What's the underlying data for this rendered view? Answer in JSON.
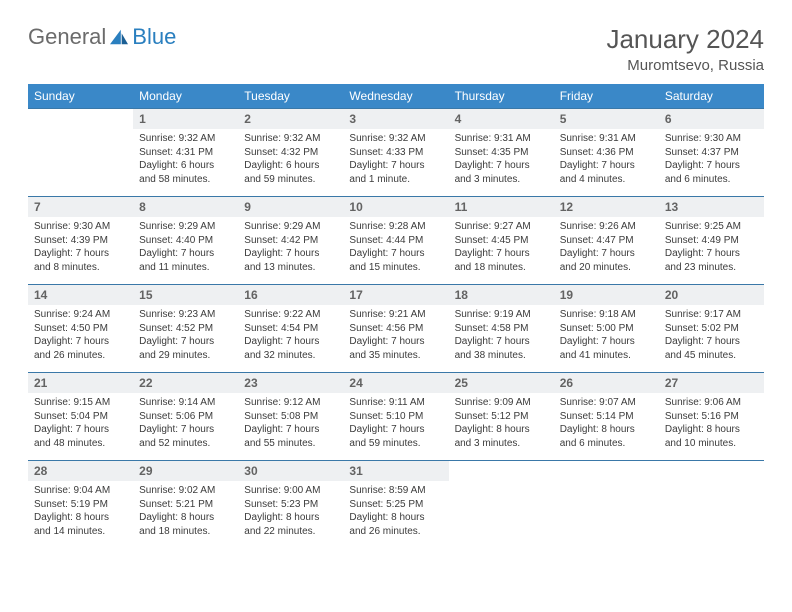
{
  "brand": {
    "part1": "General",
    "part2": "Blue"
  },
  "title": "January 2024",
  "location": "Muromtsevo, Russia",
  "colors": {
    "header_bg": "#3a88c8",
    "header_text": "#ffffff",
    "daynum_bg": "#eef0f2",
    "daynum_text": "#636363",
    "body_text": "#3b3b3b",
    "rule": "#3a78a8",
    "brand_gray": "#6b6b6b",
    "brand_blue": "#2a7fbf"
  },
  "day_headers": [
    "Sunday",
    "Monday",
    "Tuesday",
    "Wednesday",
    "Thursday",
    "Friday",
    "Saturday"
  ],
  "weeks": [
    [
      {
        "n": "",
        "lines": []
      },
      {
        "n": "1",
        "lines": [
          "Sunrise: 9:32 AM",
          "Sunset: 4:31 PM",
          "Daylight: 6 hours",
          "and 58 minutes."
        ]
      },
      {
        "n": "2",
        "lines": [
          "Sunrise: 9:32 AM",
          "Sunset: 4:32 PM",
          "Daylight: 6 hours",
          "and 59 minutes."
        ]
      },
      {
        "n": "3",
        "lines": [
          "Sunrise: 9:32 AM",
          "Sunset: 4:33 PM",
          "Daylight: 7 hours",
          "and 1 minute."
        ]
      },
      {
        "n": "4",
        "lines": [
          "Sunrise: 9:31 AM",
          "Sunset: 4:35 PM",
          "Daylight: 7 hours",
          "and 3 minutes."
        ]
      },
      {
        "n": "5",
        "lines": [
          "Sunrise: 9:31 AM",
          "Sunset: 4:36 PM",
          "Daylight: 7 hours",
          "and 4 minutes."
        ]
      },
      {
        "n": "6",
        "lines": [
          "Sunrise: 9:30 AM",
          "Sunset: 4:37 PM",
          "Daylight: 7 hours",
          "and 6 minutes."
        ]
      }
    ],
    [
      {
        "n": "7",
        "lines": [
          "Sunrise: 9:30 AM",
          "Sunset: 4:39 PM",
          "Daylight: 7 hours",
          "and 8 minutes."
        ]
      },
      {
        "n": "8",
        "lines": [
          "Sunrise: 9:29 AM",
          "Sunset: 4:40 PM",
          "Daylight: 7 hours",
          "and 11 minutes."
        ]
      },
      {
        "n": "9",
        "lines": [
          "Sunrise: 9:29 AM",
          "Sunset: 4:42 PM",
          "Daylight: 7 hours",
          "and 13 minutes."
        ]
      },
      {
        "n": "10",
        "lines": [
          "Sunrise: 9:28 AM",
          "Sunset: 4:44 PM",
          "Daylight: 7 hours",
          "and 15 minutes."
        ]
      },
      {
        "n": "11",
        "lines": [
          "Sunrise: 9:27 AM",
          "Sunset: 4:45 PM",
          "Daylight: 7 hours",
          "and 18 minutes."
        ]
      },
      {
        "n": "12",
        "lines": [
          "Sunrise: 9:26 AM",
          "Sunset: 4:47 PM",
          "Daylight: 7 hours",
          "and 20 minutes."
        ]
      },
      {
        "n": "13",
        "lines": [
          "Sunrise: 9:25 AM",
          "Sunset: 4:49 PM",
          "Daylight: 7 hours",
          "and 23 minutes."
        ]
      }
    ],
    [
      {
        "n": "14",
        "lines": [
          "Sunrise: 9:24 AM",
          "Sunset: 4:50 PM",
          "Daylight: 7 hours",
          "and 26 minutes."
        ]
      },
      {
        "n": "15",
        "lines": [
          "Sunrise: 9:23 AM",
          "Sunset: 4:52 PM",
          "Daylight: 7 hours",
          "and 29 minutes."
        ]
      },
      {
        "n": "16",
        "lines": [
          "Sunrise: 9:22 AM",
          "Sunset: 4:54 PM",
          "Daylight: 7 hours",
          "and 32 minutes."
        ]
      },
      {
        "n": "17",
        "lines": [
          "Sunrise: 9:21 AM",
          "Sunset: 4:56 PM",
          "Daylight: 7 hours",
          "and 35 minutes."
        ]
      },
      {
        "n": "18",
        "lines": [
          "Sunrise: 9:19 AM",
          "Sunset: 4:58 PM",
          "Daylight: 7 hours",
          "and 38 minutes."
        ]
      },
      {
        "n": "19",
        "lines": [
          "Sunrise: 9:18 AM",
          "Sunset: 5:00 PM",
          "Daylight: 7 hours",
          "and 41 minutes."
        ]
      },
      {
        "n": "20",
        "lines": [
          "Sunrise: 9:17 AM",
          "Sunset: 5:02 PM",
          "Daylight: 7 hours",
          "and 45 minutes."
        ]
      }
    ],
    [
      {
        "n": "21",
        "lines": [
          "Sunrise: 9:15 AM",
          "Sunset: 5:04 PM",
          "Daylight: 7 hours",
          "and 48 minutes."
        ]
      },
      {
        "n": "22",
        "lines": [
          "Sunrise: 9:14 AM",
          "Sunset: 5:06 PM",
          "Daylight: 7 hours",
          "and 52 minutes."
        ]
      },
      {
        "n": "23",
        "lines": [
          "Sunrise: 9:12 AM",
          "Sunset: 5:08 PM",
          "Daylight: 7 hours",
          "and 55 minutes."
        ]
      },
      {
        "n": "24",
        "lines": [
          "Sunrise: 9:11 AM",
          "Sunset: 5:10 PM",
          "Daylight: 7 hours",
          "and 59 minutes."
        ]
      },
      {
        "n": "25",
        "lines": [
          "Sunrise: 9:09 AM",
          "Sunset: 5:12 PM",
          "Daylight: 8 hours",
          "and 3 minutes."
        ]
      },
      {
        "n": "26",
        "lines": [
          "Sunrise: 9:07 AM",
          "Sunset: 5:14 PM",
          "Daylight: 8 hours",
          "and 6 minutes."
        ]
      },
      {
        "n": "27",
        "lines": [
          "Sunrise: 9:06 AM",
          "Sunset: 5:16 PM",
          "Daylight: 8 hours",
          "and 10 minutes."
        ]
      }
    ],
    [
      {
        "n": "28",
        "lines": [
          "Sunrise: 9:04 AM",
          "Sunset: 5:19 PM",
          "Daylight: 8 hours",
          "and 14 minutes."
        ]
      },
      {
        "n": "29",
        "lines": [
          "Sunrise: 9:02 AM",
          "Sunset: 5:21 PM",
          "Daylight: 8 hours",
          "and 18 minutes."
        ]
      },
      {
        "n": "30",
        "lines": [
          "Sunrise: 9:00 AM",
          "Sunset: 5:23 PM",
          "Daylight: 8 hours",
          "and 22 minutes."
        ]
      },
      {
        "n": "31",
        "lines": [
          "Sunrise: 8:59 AM",
          "Sunset: 5:25 PM",
          "Daylight: 8 hours",
          "and 26 minutes."
        ]
      },
      {
        "n": "",
        "lines": []
      },
      {
        "n": "",
        "lines": []
      },
      {
        "n": "",
        "lines": []
      }
    ]
  ]
}
